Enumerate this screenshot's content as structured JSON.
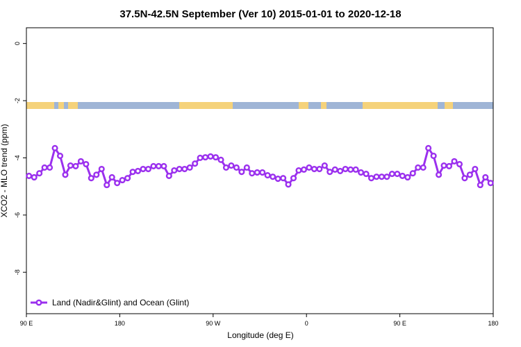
{
  "chart_data": {
    "type": "line",
    "title": "37.5N-42.5N September (Ver 10)   2015-01-01 to 2020-12-18",
    "x_label": "Longitude (deg E)",
    "y_label": "XCO2 - MLO trend (ppm)",
    "xlim": [
      90,
      540
    ],
    "ylim": [
      -9.45,
      0.55
    ],
    "xticks": [
      {
        "value": 90,
        "label": "90 E"
      },
      180,
      {
        "value": 270,
        "label": "90 W"
      },
      {
        "value": 360,
        "label": "0"
      },
      {
        "value": 450,
        "label": "90 E"
      },
      {
        "value": 540,
        "label": "180"
      }
    ],
    "yticks": [
      0,
      -2,
      -4,
      -6,
      -8
    ],
    "legend": "bottom-left",
    "x": [
      92.5,
      97.5,
      102.5,
      107.5,
      112.5,
      117.5,
      122.5,
      127.5,
      132.5,
      137.5,
      142.5,
      147.5,
      152.5,
      157.5,
      162.5,
      167.5,
      172.5,
      177.5,
      182.5,
      187.5,
      192.5,
      197.5,
      202.5,
      207.5,
      212.5,
      217.5,
      222.5,
      227.5,
      232.5,
      237.5,
      242.5,
      247.5,
      252.5,
      257.5,
      262.5,
      267.5,
      272.5,
      277.5,
      282.5,
      287.5,
      292.5,
      297.5,
      302.5,
      307.5,
      312.5,
      317.5,
      322.5,
      327.5,
      332.5,
      337.5,
      342.5,
      347.5,
      352.5,
      357.5,
      362.5,
      367.5,
      372.5,
      377.5,
      382.5,
      387.5,
      392.5,
      397.5,
      402.5,
      407.5,
      412.5,
      417.5,
      422.5,
      427.5,
      432.5,
      437.5,
      442.5,
      447.5,
      452.5,
      457.5,
      462.5,
      467.5,
      472.5,
      477.5,
      482.5,
      487.5,
      492.5,
      497.5,
      502.5,
      507.5,
      512.5,
      517.5,
      522.5,
      527.5,
      532.5,
      537.5
    ],
    "series": [
      {
        "name": "Land (Nadir&Glint) and Ocean (Glint)",
        "color": "#9b30ee",
        "values": [
          -4.63,
          -4.68,
          -4.54,
          -4.34,
          -4.34,
          -3.66,
          -3.93,
          -4.59,
          -4.27,
          -4.29,
          -4.12,
          -4.22,
          -4.71,
          -4.59,
          -4.39,
          -4.95,
          -4.68,
          -4.88,
          -4.78,
          -4.71,
          -4.49,
          -4.46,
          -4.39,
          -4.39,
          -4.29,
          -4.29,
          -4.29,
          -4.63,
          -4.44,
          -4.39,
          -4.39,
          -4.34,
          -4.2,
          -4.0,
          -3.98,
          -3.95,
          -3.98,
          -4.07,
          -4.34,
          -4.27,
          -4.34,
          -4.49,
          -4.34,
          -4.54,
          -4.51,
          -4.51,
          -4.61,
          -4.66,
          -4.73,
          -4.71,
          -4.93,
          -4.71,
          -4.44,
          -4.41,
          -4.34,
          -4.39,
          -4.39,
          -4.27,
          -4.49,
          -4.41,
          -4.46,
          -4.39,
          -4.41,
          -4.41,
          -4.51,
          -4.56,
          -4.71,
          -4.66,
          -4.66,
          -4.66,
          -4.56,
          -4.56,
          -4.63,
          -4.68,
          -4.54,
          -4.34,
          -4.34,
          -3.66,
          -3.93,
          -4.59,
          -4.27,
          -4.29,
          -4.12,
          -4.22,
          -4.71,
          -4.59,
          -4.39,
          -4.95,
          -4.68,
          -4.88
        ]
      }
    ]
  }
}
